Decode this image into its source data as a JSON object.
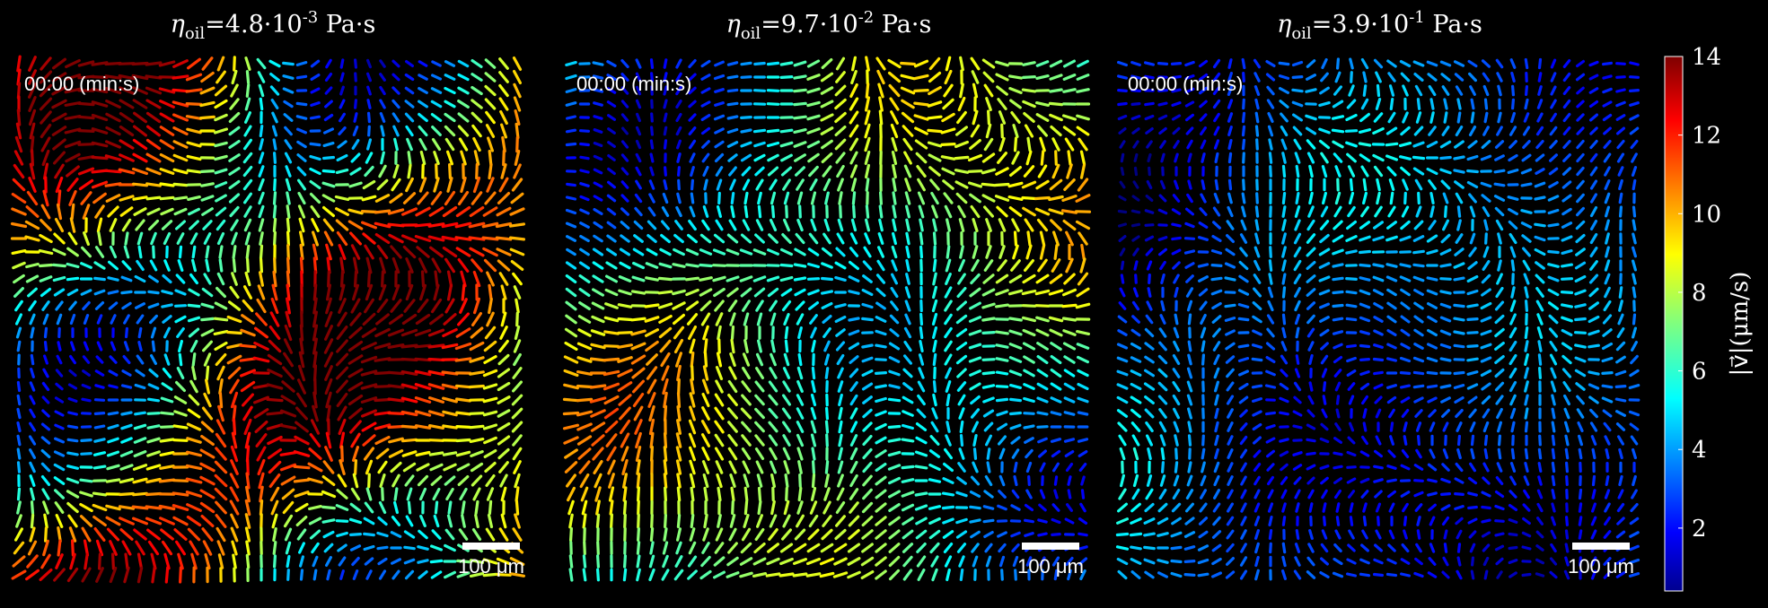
{
  "panels": [
    {
      "title": {
        "symbol": "η",
        "subscript": "oil",
        "mantissa": "=4.8·10",
        "exponent": "-3",
        "unit": "Pa·s"
      },
      "timestamp": "00:00 (min:s)",
      "scale_bar": "100 μm"
    },
    {
      "title": {
        "symbol": "η",
        "subscript": "oil",
        "mantissa": "=9.7·10",
        "exponent": "-2",
        "unit": "Pa·s"
      },
      "timestamp": "00:00 (min:s)",
      "scale_bar": "100 μm"
    },
    {
      "title": {
        "symbol": "η",
        "subscript": "oil",
        "mantissa": "=3.9·10",
        "exponent": "-1",
        "unit": "Pa·s"
      },
      "timestamp": "00:00 (min:s)",
      "scale_bar": "100 μm"
    }
  ],
  "colorbar": {
    "label": "|v⃗|(μm/s)",
    "colormap": "jet",
    "ylim": [
      0.4,
      14
    ],
    "yticks": [
      2,
      4,
      6,
      8,
      10,
      12,
      14
    ]
  }
}
